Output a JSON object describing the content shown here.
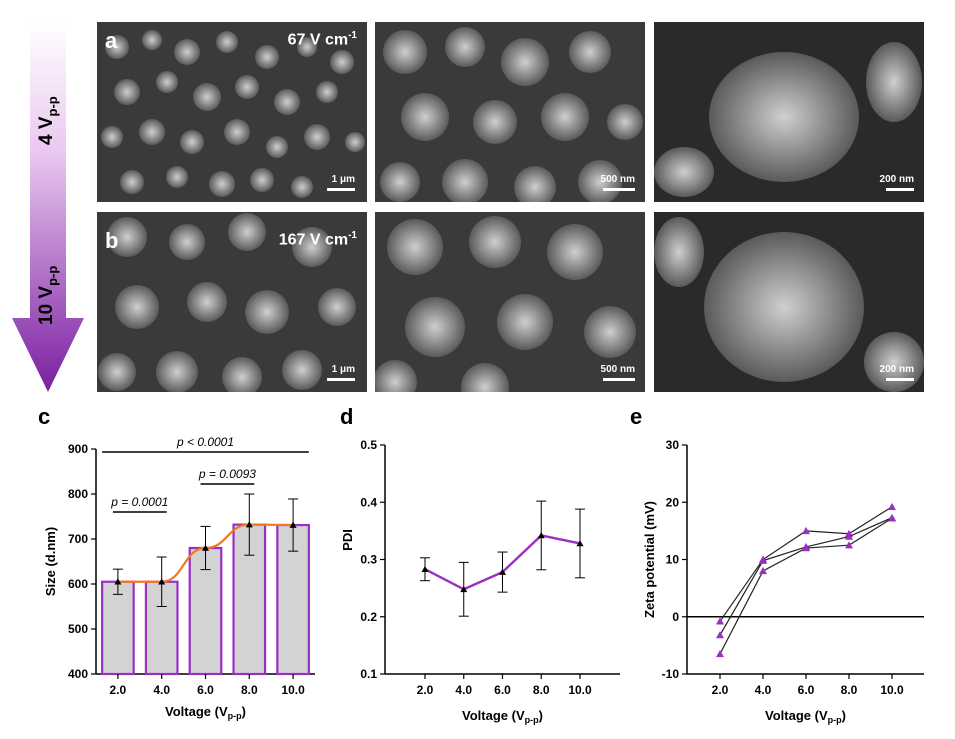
{
  "arrow": {
    "top_label": "4 V",
    "top_sub": "p-p",
    "bottom_label": "10 V",
    "bottom_sub": "p-p"
  },
  "sem": {
    "row_a": {
      "letter": "a",
      "field": "67 V cm",
      "field_sup": "-1",
      "scale_bars": [
        "1 μm",
        "500 nm",
        "200 nm"
      ]
    },
    "row_b": {
      "letter": "b",
      "field": "167 V cm",
      "field_sup": "-1",
      "scale_bars": [
        "1 μm",
        "500 nm",
        "200 nm"
      ]
    }
  },
  "chart_data": [
    {
      "panel": "c",
      "type": "bar",
      "categories": [
        "2.0",
        "4.0",
        "6.0",
        "8.0",
        "10.0"
      ],
      "values": [
        605,
        605,
        680,
        732,
        731
      ],
      "error": [
        28,
        55,
        48,
        68,
        58
      ],
      "ylabel": "Size  (d.nm)",
      "xlabel": "Voltage (V",
      "xlabel_sub": "p-p",
      "ylim": [
        400,
        900
      ],
      "yticks": [
        400,
        500,
        600,
        700,
        800,
        900
      ],
      "bar_color": "#d3d3d3",
      "bar_edge_color": "#9b2fc4",
      "fit_color": "#f07820",
      "annotations": [
        {
          "text": "p = 0.0001",
          "from": 0,
          "to": 1
        },
        {
          "text": "p = 0.0093",
          "from": 2,
          "to": 3
        },
        {
          "text": "p < 0.0001",
          "from": 0,
          "to": 4
        }
      ]
    },
    {
      "panel": "d",
      "type": "line",
      "x": [
        2.0,
        4.0,
        6.0,
        8.0,
        10.0
      ],
      "y": [
        0.283,
        0.248,
        0.278,
        0.342,
        0.328
      ],
      "error": [
        0.02,
        0.047,
        0.035,
        0.06,
        0.06
      ],
      "xticks": [
        "2.0",
        "4.0",
        "6.0",
        "8.0",
        "10.0"
      ],
      "ylabel": "PDI",
      "xlabel": "Voltage (V",
      "xlabel_sub": "p-p",
      "ylim": [
        0.1,
        0.5
      ],
      "yticks": [
        "0.1",
        "0.2",
        "0.3",
        "0.4",
        "0.5"
      ],
      "line_color": "#9b2fc4"
    },
    {
      "panel": "e",
      "type": "line",
      "x": [
        2.0,
        4.0,
        6.0,
        8.0,
        10.0
      ],
      "series": [
        {
          "values": [
            -0.8,
            10.0,
            15.0,
            14.5,
            19.2
          ]
        },
        {
          "values": [
            -3.2,
            9.8,
            12.2,
            14.0,
            17.3
          ]
        },
        {
          "values": [
            -6.5,
            8.0,
            12.0,
            12.5,
            17.2
          ]
        }
      ],
      "xticks": [
        "2.0",
        "4.0",
        "6.0",
        "8.0",
        "10.0"
      ],
      "ylabel": "Zeta potential (mV)",
      "xlabel": "Voltage (V",
      "xlabel_sub": "p-p",
      "ylim": [
        -10,
        30
      ],
      "yticks": [
        "-10",
        "0",
        "10",
        "20",
        "30"
      ],
      "marker_color": "#9b2fc4"
    }
  ]
}
